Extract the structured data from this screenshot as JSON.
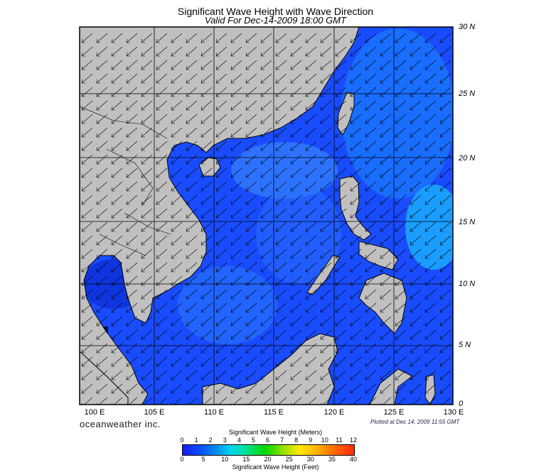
{
  "header": {
    "title": "Significant Wave Height with Wave Direction",
    "subtitle": "Valid For Dec-14-2009 18:00 GMT"
  },
  "map": {
    "lat_labels": [
      "30 N",
      "25 N",
      "20 N",
      "15 N",
      "10 N",
      "5 N",
      "0"
    ],
    "lon_labels": [
      "100 E",
      "105 E",
      "110 E",
      "115 E",
      "120 E",
      "125 E",
      "130 E"
    ],
    "land_color": "#c0c0c0",
    "water_base_color": "#1a4cff",
    "arrow_direction": "toward southwest"
  },
  "footer": {
    "brand": "oceanweather inc.",
    "plotted": "Plotted at Dec 14, 2009 11:55 GMT"
  },
  "colorbar": {
    "meters_title": "Significant Wave Height (Meters)",
    "meters_ticks": [
      "0",
      "1",
      "2",
      "3",
      "4",
      "5",
      "6",
      "7",
      "8",
      "9",
      "10",
      "11",
      "12"
    ],
    "feet_title": "Significant Wave Height (Feet)",
    "feet_ticks": [
      "0",
      "5",
      "10",
      "15",
      "20",
      "25",
      "30",
      "35",
      "40"
    ]
  }
}
